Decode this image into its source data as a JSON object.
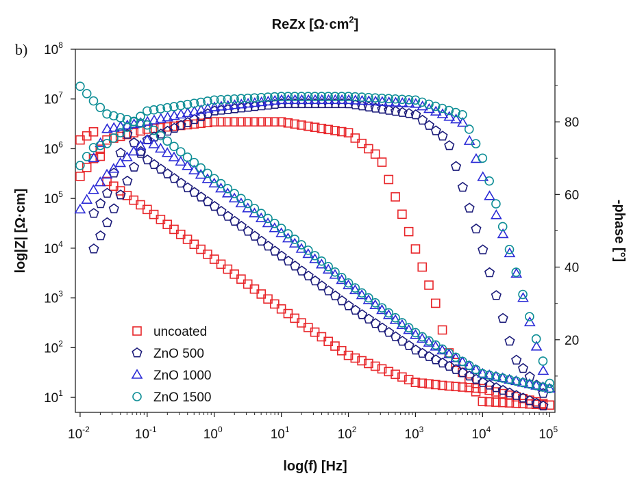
{
  "panel_label": "b)",
  "chart_data": {
    "type": "scatter",
    "title": "ReZx [Ω·cm²]",
    "title_parts": {
      "base": "ReZx [Ω·cm",
      "sup": "2",
      "end": "]"
    },
    "xlabel": "log(f) [Hz]",
    "ylabel_left": "log|Z| [Ω·cm]",
    "ylabel_right": "-phase [°]",
    "x_scale": "log",
    "y_left_scale": "log",
    "xlim": [
      0.0085,
      120000
    ],
    "ylim_left": [
      5,
      100000000
    ],
    "ylim_right": [
      0,
      100
    ],
    "x_ticks": [
      {
        "base": "10",
        "exp": "-2",
        "value": 0.01
      },
      {
        "base": "10",
        "exp": "-1",
        "value": 0.1
      },
      {
        "base": "10",
        "exp": "0",
        "value": 1
      },
      {
        "base": "10",
        "exp": "1",
        "value": 10
      },
      {
        "base": "10",
        "exp": "2",
        "value": 100
      },
      {
        "base": "10",
        "exp": "3",
        "value": 1000
      },
      {
        "base": "10",
        "exp": "4",
        "value": 10000
      },
      {
        "base": "10",
        "exp": "5",
        "value": 100000
      }
    ],
    "y_left_ticks": [
      {
        "base": "10",
        "exp": "1",
        "value": 10
      },
      {
        "base": "10",
        "exp": "2",
        "value": 100
      },
      {
        "base": "10",
        "exp": "3",
        "value": 1000
      },
      {
        "base": "10",
        "exp": "4",
        "value": 10000
      },
      {
        "base": "10",
        "exp": "5",
        "value": 100000
      },
      {
        "base": "10",
        "exp": "6",
        "value": 1000000
      },
      {
        "base": "10",
        "exp": "7",
        "value": 10000000
      },
      {
        "base": "10",
        "exp": "8",
        "value": 100000000
      }
    ],
    "y_right_ticks": [
      {
        "label": "20",
        "value": 20
      },
      {
        "label": "40",
        "value": 40
      },
      {
        "label": "60",
        "value": 60
      },
      {
        "label": "80",
        "value": 80
      }
    ],
    "legend_position": "lower-left",
    "series": [
      {
        "name": "uncoated",
        "color": "#e8262a",
        "marker": "square",
        "modulus": {
          "points": [
            [
              0.01,
              1500000
            ],
            [
              0.016,
              2200000
            ],
            [
              0.025,
              220000
            ],
            [
              0.1,
              60000
            ],
            [
              1,
              6000
            ],
            [
              10,
              600
            ],
            [
              100,
              70
            ],
            [
              1000,
              20
            ],
            [
              3000,
              17
            ],
            [
              10000,
              15
            ],
            [
              100000,
              7
            ]
          ]
        },
        "phase": {
          "points": [
            [
              0.01,
              65
            ],
            [
              0.016,
              70
            ],
            [
              0.025,
              75
            ],
            [
              0.1,
              78
            ],
            [
              1,
              80
            ],
            [
              10,
              80
            ],
            [
              100,
              77
            ],
            [
              300,
              70
            ],
            [
              1000,
              45
            ],
            [
              2000,
              30
            ],
            [
              3000,
              17
            ],
            [
              10000,
              3
            ],
            [
              100000,
              2
            ]
          ]
        }
      },
      {
        "name": "ZnO 500",
        "color": "#1c1c7a",
        "marker": "pentagon",
        "modulus": {
          "points": [
            [
              0.016,
              50000
            ],
            [
              0.025,
              120000
            ],
            [
              0.05,
              2000000
            ],
            [
              0.1,
              600000
            ],
            [
              1,
              70000
            ],
            [
              10,
              7000
            ],
            [
              100,
              700
            ],
            [
              1000,
              90
            ],
            [
              10000,
              20
            ],
            [
              100000,
              6
            ]
          ]
        },
        "phase": {
          "points": [
            [
              0.016,
              45
            ],
            [
              0.025,
              52
            ],
            [
              0.1,
              75
            ],
            [
              1,
              83
            ],
            [
              10,
              85
            ],
            [
              100,
              85
            ],
            [
              1000,
              82
            ],
            [
              3000,
              75
            ],
            [
              10000,
              45
            ],
            [
              30000,
              15
            ],
            [
              100000,
              3
            ]
          ]
        }
      },
      {
        "name": "ZnO 1000",
        "color": "#2b2bd6",
        "marker": "triangle",
        "modulus": {
          "points": [
            [
              0.01,
              60000
            ],
            [
              0.016,
              150000
            ],
            [
              0.025,
              300000
            ],
            [
              0.1,
              1500000
            ],
            [
              1,
              200000
            ],
            [
              10,
              20000
            ],
            [
              100,
              1800
            ],
            [
              1000,
              180
            ],
            [
              10000,
              30
            ],
            [
              100000,
              15
            ]
          ]
        },
        "phase": {
          "points": [
            [
              0.016,
              70
            ],
            [
              0.025,
              78
            ],
            [
              0.1,
              80
            ],
            [
              1,
              84
            ],
            [
              10,
              86
            ],
            [
              100,
              86
            ],
            [
              1000,
              85
            ],
            [
              5000,
              80
            ],
            [
              10000,
              65
            ],
            [
              30000,
              40
            ],
            [
              100000,
              5
            ]
          ]
        }
      },
      {
        "name": "ZnO 1500",
        "color": "#0e8e96",
        "marker": "circle",
        "modulus": {
          "points": [
            [
              0.01,
              18000000
            ],
            [
              0.016,
              9000000
            ],
            [
              0.025,
              5000000
            ],
            [
              0.1,
              3000000
            ],
            [
              1,
              250000
            ],
            [
              10,
              25000
            ],
            [
              100,
              2000
            ],
            [
              1000,
              200
            ],
            [
              10000,
              30
            ],
            [
              100000,
              15
            ]
          ]
        },
        "phase": {
          "points": [
            [
              0.01,
              68
            ],
            [
              0.016,
              73
            ],
            [
              0.025,
              74
            ],
            [
              0.1,
              83
            ],
            [
              1,
              86
            ],
            [
              10,
              87
            ],
            [
              100,
              87
            ],
            [
              1000,
              86
            ],
            [
              5000,
              82
            ],
            [
              10000,
              70
            ],
            [
              30000,
              40
            ],
            [
              100000,
              8
            ]
          ]
        }
      }
    ]
  }
}
